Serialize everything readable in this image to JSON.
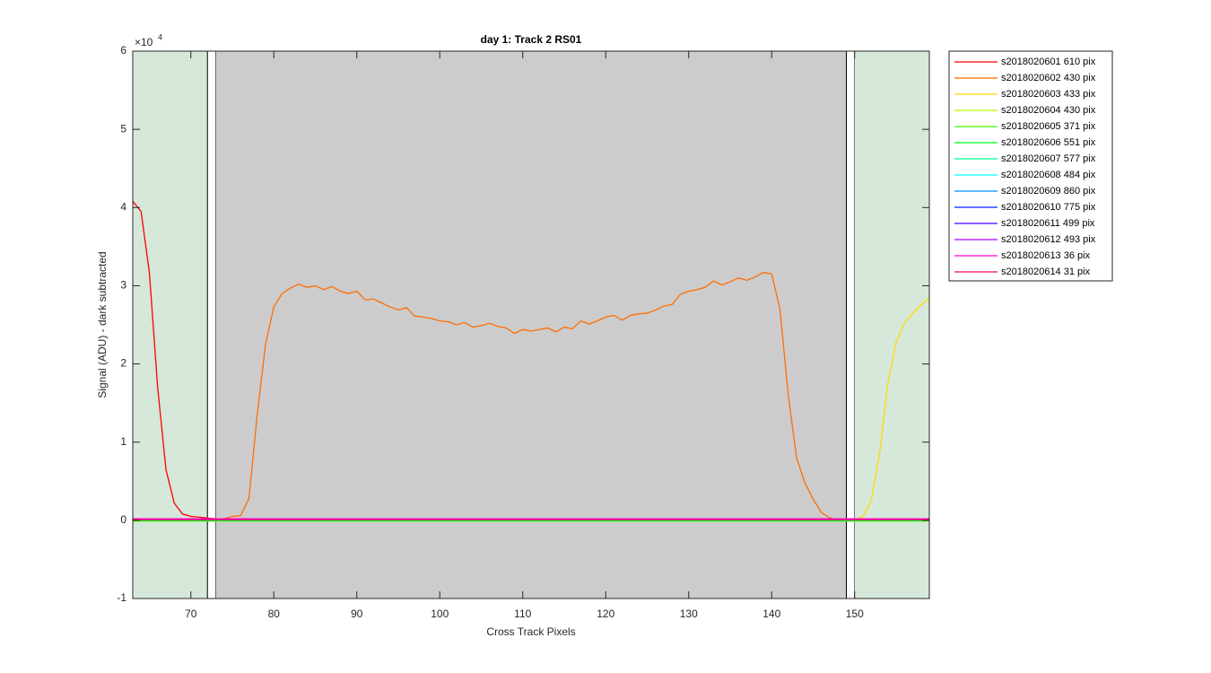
{
  "chart_data": {
    "type": "line",
    "title": "day 1: Track 2  RS01",
    "x_label": "Cross Track Pixels",
    "y_label": "Signal (ADU) - dark subtracted",
    "y_multiplier": {
      "base": "×10",
      "exponent": "4"
    },
    "xlim": [
      63,
      159
    ],
    "ylim": [
      -1,
      6
    ],
    "xticks": [
      70,
      80,
      90,
      100,
      110,
      120,
      130,
      140,
      150
    ],
    "yticks": [
      -1,
      0,
      1,
      2,
      3,
      4,
      5,
      6
    ],
    "legend": "outside-right",
    "regions": [
      {
        "x": [
          63,
          72
        ],
        "color": "#d5e8d9"
      },
      {
        "x": [
          72,
          73
        ],
        "color": "#ffffff",
        "edgecolor": "#000000"
      },
      {
        "x": [
          73,
          149
        ],
        "color": "#cccccc"
      },
      {
        "x": [
          149,
          150
        ],
        "color": "#ffffff",
        "edgecolor": "#000000"
      },
      {
        "x": [
          150,
          159
        ],
        "color": "#d5e8d9"
      }
    ],
    "series": [
      {
        "name": "s2018020601 610 pix",
        "color": "#ff0000",
        "x": [
          63,
          64,
          65,
          66,
          67,
          68,
          69,
          70,
          71,
          72,
          73,
          74,
          159
        ],
        "values": [
          4.08,
          3.95,
          3.17,
          1.7,
          0.65,
          0.22,
          0.08,
          0.05,
          0.04,
          0.03,
          0.02,
          0.01,
          0.01
        ]
      },
      {
        "name": "s2018020602 430 pix",
        "color": "#ff6d00",
        "x": [
          63,
          73,
          74,
          75,
          76,
          77,
          78,
          79,
          80,
          81,
          82,
          83,
          84,
          85,
          86,
          87,
          88,
          89,
          90,
          91,
          92,
          93,
          94,
          95,
          96,
          97,
          98,
          99,
          100,
          101,
          102,
          103,
          104,
          105,
          106,
          107,
          108,
          109,
          110,
          111,
          112,
          113,
          114,
          115,
          116,
          117,
          118,
          119,
          120,
          121,
          122,
          123,
          124,
          125,
          126,
          127,
          128,
          129,
          130,
          131,
          132,
          133,
          134,
          135,
          136,
          137,
          138,
          139,
          140,
          141,
          142,
          143,
          144,
          145,
          146,
          147,
          148,
          149,
          150,
          159
        ],
        "values": [
          0.01,
          0.01,
          0.02,
          0.05,
          0.06,
          0.28,
          1.35,
          2.25,
          2.73,
          2.9,
          2.97,
          3.02,
          2.98,
          3.0,
          2.95,
          2.99,
          2.93,
          2.9,
          2.93,
          2.82,
          2.83,
          2.78,
          2.73,
          2.69,
          2.72,
          2.61,
          2.6,
          2.58,
          2.55,
          2.54,
          2.5,
          2.53,
          2.47,
          2.49,
          2.52,
          2.48,
          2.46,
          2.39,
          2.44,
          2.42,
          2.44,
          2.46,
          2.41,
          2.47,
          2.45,
          2.55,
          2.51,
          2.55,
          2.6,
          2.62,
          2.56,
          2.62,
          2.64,
          2.65,
          2.69,
          2.74,
          2.76,
          2.89,
          2.93,
          2.95,
          2.98,
          3.06,
          3.01,
          3.05,
          3.1,
          3.07,
          3.11,
          3.17,
          3.15,
          2.7,
          1.6,
          0.8,
          0.48,
          0.27,
          0.1,
          0.03,
          0.01,
          0.0,
          0.01,
          0.01
        ]
      },
      {
        "name": "s2018020603 433 pix",
        "color": "#ffdb00",
        "x": [
          63,
          149,
          150,
          151,
          152,
          153,
          154,
          155,
          156,
          157,
          158,
          159
        ],
        "values": [
          0.01,
          0.0,
          0.0,
          0.05,
          0.25,
          0.85,
          1.75,
          2.28,
          2.52,
          2.65,
          2.75,
          2.85
        ]
      },
      {
        "name": "s2018020604 430 pix",
        "color": "#b6ff00",
        "x": [
          63,
          159
        ],
        "values": [
          0.0,
          0.0
        ]
      },
      {
        "name": "s2018020605 371 pix",
        "color": "#49ff00",
        "x": [
          63,
          159
        ],
        "values": [
          -0.01,
          -0.01
        ]
      },
      {
        "name": "s2018020606 551 pix",
        "color": "#00ff24",
        "x": [
          63,
          159
        ],
        "values": [
          0.0,
          0.0
        ]
      },
      {
        "name": "s2018020607 577 pix",
        "color": "#00ff92",
        "x": [
          63,
          159
        ],
        "values": [
          0.01,
          0.01
        ]
      },
      {
        "name": "s2018020608 484 pix",
        "color": "#00ffff",
        "x": [
          63,
          159
        ],
        "values": [
          0.01,
          0.01
        ]
      },
      {
        "name": "s2018020609 860 pix",
        "color": "#0092ff",
        "x": [
          63,
          159
        ],
        "values": [
          0.01,
          0.01
        ]
      },
      {
        "name": "s2018020610 775 pix",
        "color": "#0024ff",
        "x": [
          63,
          159
        ],
        "values": [
          0.01,
          0.01
        ]
      },
      {
        "name": "s2018020611 499 pix",
        "color": "#4900ff",
        "x": [
          63,
          159
        ],
        "values": [
          0.01,
          0.01
        ]
      },
      {
        "name": "s2018020612 493 pix",
        "color": "#b600ff",
        "x": [
          63,
          159
        ],
        "values": [
          0.01,
          0.01
        ]
      },
      {
        "name": "s2018020613 36 pix",
        "color": "#ff00db",
        "x": [
          63,
          159
        ],
        "values": [
          0.02,
          0.02
        ]
      },
      {
        "name": "s2018020614 31 pix",
        "color": "#ff006d",
        "x": [
          63,
          159
        ],
        "values": [
          0.01,
          0.01
        ]
      }
    ]
  }
}
